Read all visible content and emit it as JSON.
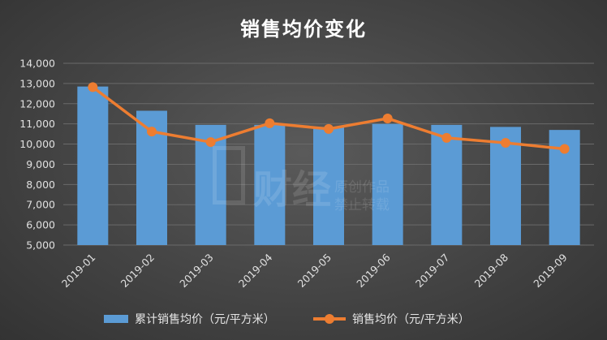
{
  "chart_data": {
    "type": "bar+line",
    "title": "销售均价变化",
    "categories": [
      "2019-01",
      "2019-02",
      "2019-03",
      "2019-04",
      "2019-05",
      "2019-06",
      "2019-07",
      "2019-08",
      "2019-09"
    ],
    "ylim": [
      5000,
      14000
    ],
    "yticks": [
      5000,
      6000,
      7000,
      8000,
      9000,
      10000,
      11000,
      12000,
      13000,
      14000
    ],
    "ytick_labels": [
      "5,000",
      "6,000",
      "7,000",
      "8,000",
      "9,000",
      "10,000",
      "11,000",
      "12,000",
      "13,000",
      "14,000"
    ],
    "grid": true,
    "legend_position": "bottom",
    "series": [
      {
        "name": "累计销售均价（元/平方米）",
        "kind": "bar",
        "color": "#5b9bd5",
        "values": [
          12850,
          11650,
          10950,
          10950,
          10850,
          11000,
          10950,
          10850,
          10700
        ]
      },
      {
        "name": "销售均价（元/平方米）",
        "kind": "line",
        "color": "#ed7d31",
        "values": [
          12820,
          10620,
          10100,
          11030,
          10750,
          11270,
          10310,
          10060,
          9760
        ]
      }
    ]
  },
  "watermark": {
    "big_text": "财经",
    "small_line1": "原创作品",
    "small_line2": "禁止转载"
  }
}
